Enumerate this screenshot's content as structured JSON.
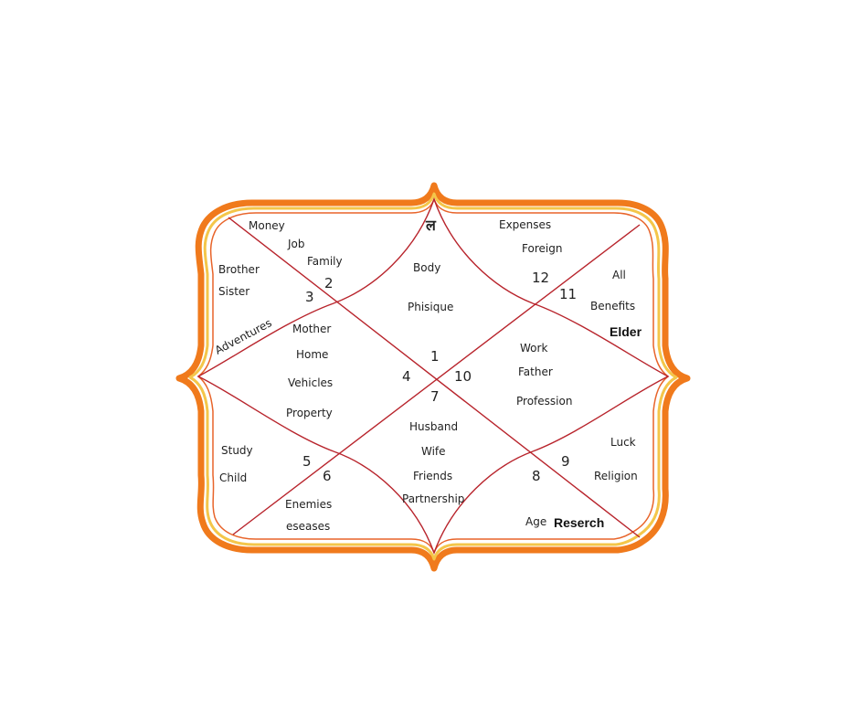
{
  "colors": {
    "frame_outer": "#f07a1c",
    "frame_middle": "#f4c64a",
    "frame_inner": "#e8642a",
    "lines": "#b8242c"
  },
  "lagna_symbol": "ल",
  "houses": {
    "h1": {
      "number": "1",
      "labels": [
        "Body",
        "Phisique"
      ]
    },
    "h2": {
      "number": "2",
      "labels": [
        "Money",
        "Job",
        "Family"
      ]
    },
    "h3": {
      "number": "3",
      "labels": [
        "Brother",
        "Sister",
        "Adventures"
      ]
    },
    "h4": {
      "number": "4",
      "labels": [
        "Mother",
        "Home",
        "Vehicles",
        "Property"
      ]
    },
    "h5": {
      "number": "5",
      "labels": [
        "Study",
        "Child"
      ]
    },
    "h6": {
      "number": "6",
      "labels": [
        "Enemies",
        "eseases"
      ]
    },
    "h7": {
      "number": "7",
      "labels": [
        "Husband",
        "Wife",
        "Friends",
        "Partnership"
      ]
    },
    "h8": {
      "number": "8",
      "labels": [
        "Age",
        "Reserch"
      ]
    },
    "h9": {
      "number": "9",
      "labels": [
        "Luck",
        "Religion"
      ]
    },
    "h10": {
      "number": "10",
      "labels": [
        "Work",
        "Father",
        "Profession"
      ]
    },
    "h11": {
      "number": "11",
      "labels": [
        "All",
        "Benefits",
        "Elder"
      ]
    },
    "h12": {
      "number": "12",
      "labels": [
        "Expenses",
        "Foreign"
      ]
    }
  }
}
